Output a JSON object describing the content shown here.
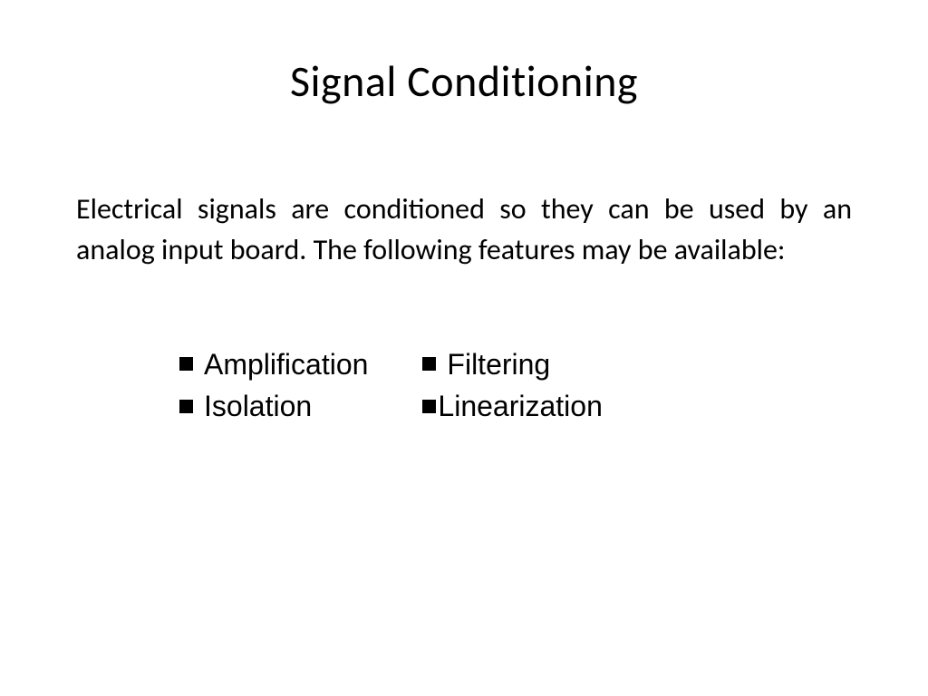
{
  "slide": {
    "title": "Signal Conditioning",
    "body": "Electrical signals are conditioned so they can be used by an analog input board. The following features may be available:",
    "bullets": {
      "left": [
        "Amplification",
        "Isolation"
      ],
      "right": [
        "Filtering",
        "Linearization"
      ]
    }
  },
  "styling": {
    "background_color": "#ffffff",
    "text_color": "#000000",
    "title_fontsize": 48,
    "title_fontweight": 400,
    "body_fontsize": 32,
    "body_fontweight": 400,
    "bullet_fontsize": 32,
    "bullet_marker_size": 15,
    "bullet_marker_shape": "square",
    "title_font": "Calibri",
    "body_font": "Calibri",
    "bullet_font": "Verdana",
    "slide_width": 1024,
    "slide_height": 768
  }
}
